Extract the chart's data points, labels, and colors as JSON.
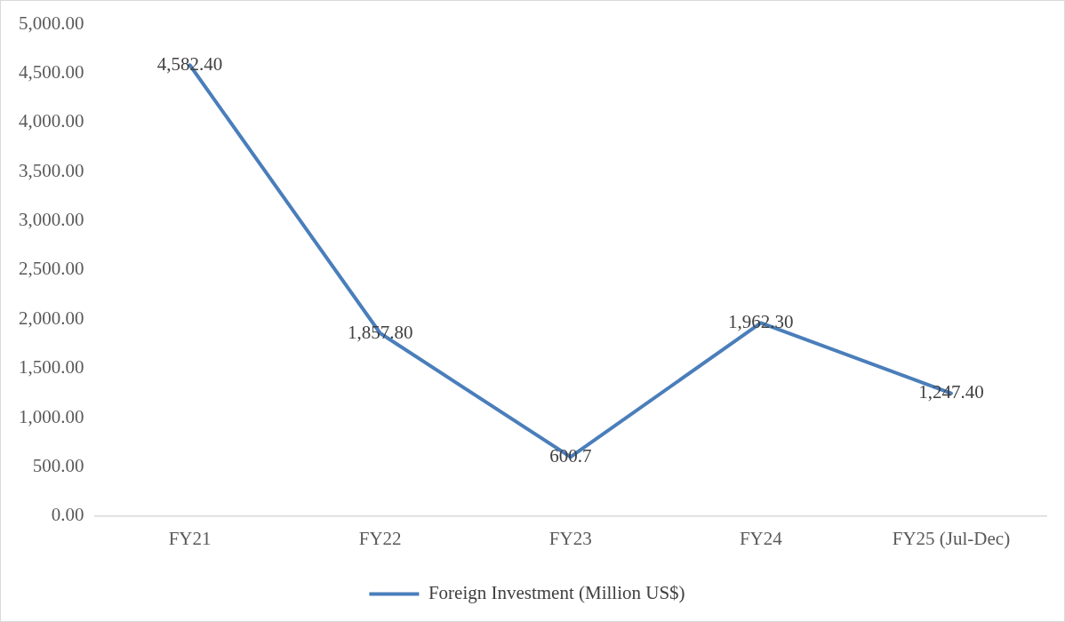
{
  "chart_data": {
    "type": "line",
    "categories": [
      "FY21",
      "FY22",
      "FY23",
      "FY24",
      "FY25 (Jul-Dec)"
    ],
    "series": [
      {
        "name": "Foreign Investment (Million US$)",
        "color": "#4a7ebb",
        "values": [
          4582.4,
          1857.8,
          600.7,
          1962.3,
          1247.4
        ],
        "value_labels": [
          "4,582.40",
          "1,857.80",
          "600.7",
          "1,962.30",
          "1,247.40"
        ]
      }
    ],
    "ylim": [
      0,
      5000
    ],
    "yticks": [
      {
        "value": 0,
        "label": "0.00"
      },
      {
        "value": 500,
        "label": "500.00"
      },
      {
        "value": 1000,
        "label": "1,000.00"
      },
      {
        "value": 1500,
        "label": "1,500.00"
      },
      {
        "value": 2000,
        "label": "2,000.00"
      },
      {
        "value": 2500,
        "label": "2,500.00"
      },
      {
        "value": 3000,
        "label": "3,000.00"
      },
      {
        "value": 3500,
        "label": "3,500.00"
      },
      {
        "value": 4000,
        "label": "4,000.00"
      },
      {
        "value": 4500,
        "label": "4,500.00"
      },
      {
        "value": 5000,
        "label": "5,000.00"
      }
    ],
    "grid": false,
    "legend": "bottom",
    "marker": "none",
    "line_style": "solid"
  }
}
